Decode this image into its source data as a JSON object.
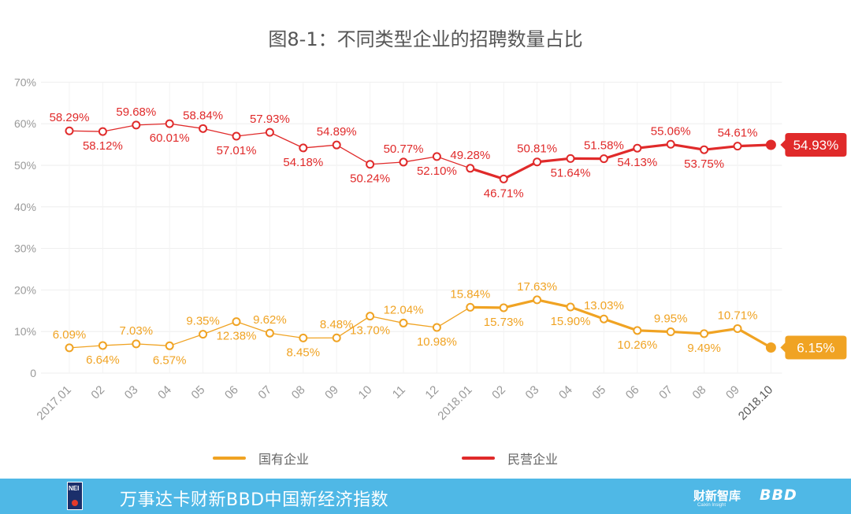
{
  "chart_data": {
    "type": "line",
    "title": "图8-1：不同类型企业的招聘数量占比",
    "ylim": [
      0,
      70
    ],
    "yticks": [
      0,
      10,
      20,
      30,
      40,
      50,
      60,
      70
    ],
    "ytick_labels": [
      "0",
      "10%",
      "20%",
      "30%",
      "40%",
      "50%",
      "60%",
      "70%"
    ],
    "categories": [
      "2017.01",
      "02",
      "03",
      "04",
      "05",
      "06",
      "07",
      "08",
      "09",
      "10",
      "11",
      "12",
      "2018.01",
      "02",
      "03",
      "04",
      "05",
      "06",
      "07",
      "08",
      "09",
      "2018.10"
    ],
    "grid": true,
    "legend_position": "bottom",
    "series": [
      {
        "name": "国有企业",
        "color": "#f0a323",
        "values": [
          6.09,
          6.64,
          7.03,
          6.57,
          9.35,
          12.38,
          9.62,
          8.45,
          8.48,
          13.7,
          12.04,
          10.98,
          15.84,
          15.73,
          17.63,
          15.9,
          13.03,
          10.26,
          9.95,
          9.49,
          10.71,
          6.15
        ],
        "labels": [
          "6.09%",
          "6.64%",
          "7.03%",
          "6.57%",
          "9.35%",
          "12.38%",
          "9.62%",
          "8.45%",
          "8.48%",
          "13.70%",
          "12.04%",
          "10.98%",
          "15.84%",
          "15.73%",
          "17.63%",
          "15.90%",
          "13.03%",
          "10.26%",
          "9.95%",
          "9.49%",
          "10.71%",
          "6.15%"
        ]
      },
      {
        "name": "民营企业",
        "color": "#e02a2a",
        "values": [
          58.29,
          58.12,
          59.68,
          60.01,
          58.84,
          57.01,
          57.93,
          54.18,
          54.89,
          50.24,
          50.77,
          52.1,
          49.28,
          46.71,
          50.81,
          51.64,
          51.58,
          54.13,
          55.06,
          53.75,
          54.61,
          54.93
        ],
        "labels": [
          "58.29%",
          "58.12%",
          "59.68%",
          "60.01%",
          "58.84%",
          "57.01%",
          "57.93%",
          "54.18%",
          "54.89%",
          "50.24%",
          "50.77%",
          "52.10%",
          "49.28%",
          "46.71%",
          "50.81%",
          "51.64%",
          "51.58%",
          "54.13%",
          "55.06%",
          "53.75%",
          "54.61%",
          "54.93%"
        ]
      }
    ]
  },
  "footer": {
    "logo_text": "NEI",
    "title": "万事达卡财新BBD中国新经济指数",
    "brand1": "财新智库",
    "brand1_sub": "Caixin Insight",
    "brand2": "BBD",
    "background": "#4fb8e6"
  }
}
